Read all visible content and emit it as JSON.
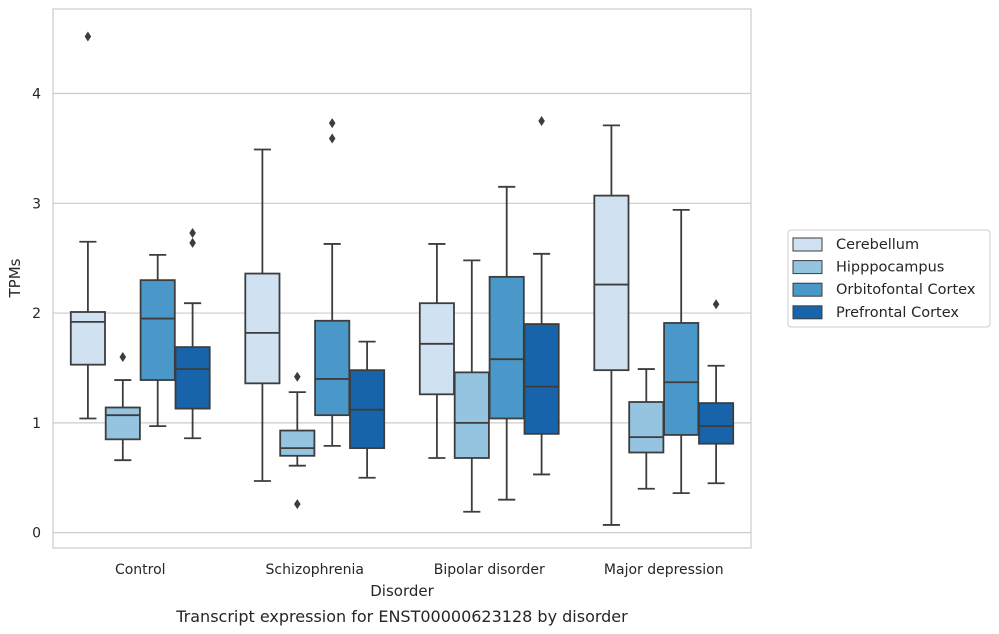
{
  "chart_data": {
    "type": "box",
    "xlabel": "Disorder",
    "ylabel": "TPMs",
    "caption": "Transcript expression for ENST00000623128 by disorder",
    "ylim": [
      -0.14,
      4.77
    ],
    "yticks": [
      0,
      1,
      2,
      3,
      4
    ],
    "grid": "horizontal",
    "legend_position": "right",
    "categories": [
      "Control",
      "Schizophrenia",
      "Bipolar disorder",
      "Major depression"
    ],
    "series": [
      {
        "name": "Cerebellum",
        "color": "#d0e1f2",
        "boxes": [
          {
            "whisker_low": 1.04,
            "q1": 1.53,
            "median": 1.92,
            "q3": 2.01,
            "whisker_high": 2.65,
            "outliers": [
              4.52
            ]
          },
          {
            "whisker_low": 0.47,
            "q1": 1.36,
            "median": 1.82,
            "q3": 2.36,
            "whisker_high": 3.49,
            "outliers": []
          },
          {
            "whisker_low": 0.68,
            "q1": 1.26,
            "median": 1.72,
            "q3": 2.09,
            "whisker_high": 2.63,
            "outliers": []
          },
          {
            "whisker_low": 0.07,
            "q1": 1.48,
            "median": 2.26,
            "q3": 3.07,
            "whisker_high": 3.71,
            "outliers": []
          }
        ]
      },
      {
        "name": "Hipppocampus",
        "color": "#94c4df",
        "boxes": [
          {
            "whisker_low": 0.66,
            "q1": 0.85,
            "median": 1.07,
            "q3": 1.14,
            "whisker_high": 1.39,
            "outliers": [
              1.6
            ]
          },
          {
            "whisker_low": 0.61,
            "q1": 0.7,
            "median": 0.77,
            "q3": 0.93,
            "whisker_high": 1.28,
            "outliers": [
              1.42,
              0.26
            ]
          },
          {
            "whisker_low": 0.19,
            "q1": 0.68,
            "median": 1.0,
            "q3": 1.46,
            "whisker_high": 2.48,
            "outliers": []
          },
          {
            "whisker_low": 0.4,
            "q1": 0.73,
            "median": 0.87,
            "q3": 1.19,
            "whisker_high": 1.49,
            "outliers": []
          }
        ]
      },
      {
        "name": "Orbitofontal Cortex",
        "color": "#4a98c9",
        "boxes": [
          {
            "whisker_low": 0.97,
            "q1": 1.39,
            "median": 1.95,
            "q3": 2.3,
            "whisker_high": 2.53,
            "outliers": []
          },
          {
            "whisker_low": 0.79,
            "q1": 1.07,
            "median": 1.4,
            "q3": 1.93,
            "whisker_high": 2.63,
            "outliers": [
              3.73,
              3.59
            ]
          },
          {
            "whisker_low": 0.3,
            "q1": 1.04,
            "median": 1.58,
            "q3": 2.33,
            "whisker_high": 3.15,
            "outliers": []
          },
          {
            "whisker_low": 0.36,
            "q1": 0.89,
            "median": 1.37,
            "q3": 1.91,
            "whisker_high": 2.94,
            "outliers": []
          }
        ]
      },
      {
        "name": "Prefrontal Cortex",
        "color": "#1764ab",
        "boxes": [
          {
            "whisker_low": 0.86,
            "q1": 1.13,
            "median": 1.49,
            "q3": 1.69,
            "whisker_high": 2.09,
            "outliers": [
              2.73,
              2.64
            ]
          },
          {
            "whisker_low": 0.5,
            "q1": 0.77,
            "median": 1.12,
            "q3": 1.48,
            "whisker_high": 1.74,
            "outliers": []
          },
          {
            "whisker_low": 0.53,
            "q1": 0.9,
            "median": 1.33,
            "q3": 1.9,
            "whisker_high": 2.54,
            "outliers": [
              3.75
            ]
          },
          {
            "whisker_low": 0.45,
            "q1": 0.81,
            "median": 0.97,
            "q3": 1.18,
            "whisker_high": 1.52,
            "outliers": [
              2.08
            ]
          }
        ]
      }
    ]
  }
}
